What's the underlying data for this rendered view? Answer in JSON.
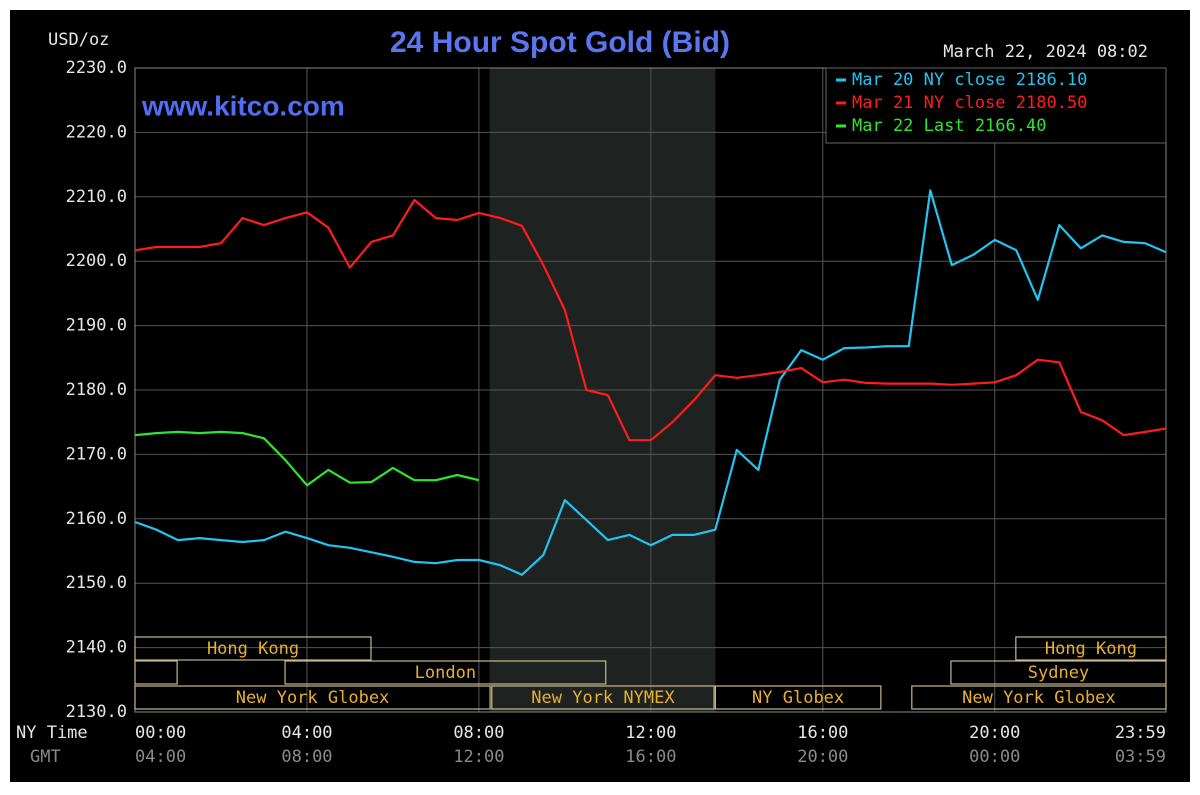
{
  "chart_data": {
    "type": "line",
    "title": "24 Hour Spot Gold (Bid)",
    "subtitle": "March 22, 2024 08:02",
    "y_label": "USD/oz",
    "watermark": "www.kitco.com",
    "x_label": "NY Time",
    "x2_label": "GMT",
    "x": [
      0,
      0.5,
      1,
      1.5,
      2,
      2.5,
      3,
      3.5,
      4,
      4.5,
      5,
      5.5,
      6,
      6.5,
      7,
      7.5,
      8,
      8.5,
      9,
      9.5,
      10,
      10.5,
      11,
      11.5,
      12,
      12.5,
      13,
      13.5,
      14,
      14.5,
      15,
      15.5,
      16,
      16.5,
      17,
      17.5,
      18,
      18.5,
      19,
      19.5,
      20,
      20.5,
      21,
      21.5,
      22,
      22.5,
      23,
      23.5,
      23.983
    ],
    "xlim": [
      0,
      23.983
    ],
    "xticks": [
      {
        "value": 0,
        "label": "00:00"
      },
      {
        "value": 4,
        "label": "04:00"
      },
      {
        "value": 8,
        "label": "08:00"
      },
      {
        "value": 12,
        "label": "12:00"
      },
      {
        "value": 16,
        "label": "16:00"
      },
      {
        "value": 20,
        "label": "20:00"
      },
      {
        "value": 23.983,
        "label": "23:59"
      }
    ],
    "x2ticks": [
      {
        "value": 0,
        "label": "04:00"
      },
      {
        "value": 4,
        "label": "08:00"
      },
      {
        "value": 8,
        "label": "12:00"
      },
      {
        "value": 12,
        "label": "16:00"
      },
      {
        "value": 16,
        "label": "20:00"
      },
      {
        "value": 20,
        "label": "00:00"
      },
      {
        "value": 23.983,
        "label": "03:59"
      }
    ],
    "ylim": [
      2130,
      2230
    ],
    "yticks": [
      {
        "value": 2130,
        "label": "2130.0"
      },
      {
        "value": 2140,
        "label": "2140.0"
      },
      {
        "value": 2150,
        "label": "2150.0"
      },
      {
        "value": 2160,
        "label": "2160.0"
      },
      {
        "value": 2170,
        "label": "2170.0"
      },
      {
        "value": 2180,
        "label": "2180.0"
      },
      {
        "value": 2190,
        "label": "2190.0"
      },
      {
        "value": 2200,
        "label": "2200.0"
      },
      {
        "value": 2210,
        "label": "2210.0"
      },
      {
        "value": 2220,
        "label": "2220.0"
      },
      {
        "value": 2230,
        "label": "2230.0"
      }
    ],
    "grid": true,
    "legend": "top-right",
    "shaded_range": [
      8.25,
      13.5
    ],
    "sessions": [
      {
        "label": "Hong Kong",
        "start": 0,
        "end": 5.49
      },
      {
        "label": "Hong Kong",
        "start": 20.49,
        "end": 23.983
      },
      {
        "label": null,
        "start": 0,
        "end": 0.98
      },
      {
        "label": "London",
        "start": 3.49,
        "end": 10.95
      },
      {
        "label": "Sydney",
        "start": 18.98,
        "end": 23.983
      },
      {
        "label": "New York Globex",
        "start": 0,
        "end": 8.26
      },
      {
        "label": "New York NYMEX",
        "start": 8.3,
        "end": 13.47
      },
      {
        "label": "NY Globex",
        "start": 13.5,
        "end": 17.35
      },
      {
        "label": "New York Globex",
        "start": 18.07,
        "end": 23.983
      }
    ],
    "series": [
      {
        "name": "Mar 20 NY close 2186.10",
        "color": "#22c4f2",
        "values": [
          2159.5,
          2158.3,
          2156.7,
          2157,
          2156.7,
          2156.4,
          2156.7,
          2158,
          2157,
          2155.9,
          2155.5,
          2154.8,
          2154.1,
          2153.3,
          2153.1,
          2153.6,
          2153.6,
          2152.8,
          2151.3,
          2154.4,
          2162.9,
          2159.8,
          2156.7,
          2157.5,
          2155.9,
          2157.5,
          2157.5,
          2158.3,
          2170.7,
          2167.6,
          2181.6,
          2186.2,
          2184.7,
          2186.5,
          2186.6,
          2186.8,
          2186.8,
          2211,
          2199.4,
          2201,
          2203.3,
          2201.7,
          2194,
          2205.6,
          2202,
          2204,
          2203,
          2202.8,
          2201.4
        ]
      },
      {
        "name": "Mar 21 NY close 2180.50",
        "color": "#ff1c1c",
        "values": [
          2201.7,
          2202.2,
          2202.2,
          2202.2,
          2202.8,
          2206.7,
          2205.6,
          2206.7,
          2207.6,
          2205.2,
          2199,
          2203,
          2204,
          2209.5,
          2206.7,
          2206.4,
          2207.5,
          2206.7,
          2205.5,
          2199.4,
          2192.4,
          2180,
          2179.2,
          2172.2,
          2172.2,
          2175,
          2178.4,
          2182.3,
          2181.9,
          2182.3,
          2182.8,
          2183.4,
          2181.2,
          2181.6,
          2181.1,
          2181,
          2181,
          2181,
          2180.8,
          2181,
          2181.2,
          2182.3,
          2184.7,
          2184.3,
          2176.6,
          2175.3,
          2173,
          2173.5,
          2174
        ]
      },
      {
        "name": "Mar 22 Last 2166.40",
        "color": "#2ee62e",
        "values": [
          2173,
          2173.3,
          2173.5,
          2173.3,
          2173.5,
          2173.3,
          2172.5,
          2169.1,
          2165.2,
          2167.6,
          2165.6,
          2165.7,
          2167.9,
          2166,
          2166,
          2166.8,
          2166,
          null,
          null,
          null,
          null,
          null,
          null,
          null,
          null,
          null,
          null,
          null,
          null,
          null,
          null,
          null,
          null,
          null,
          null,
          null,
          null,
          null,
          null,
          null,
          null,
          null,
          null,
          null,
          null,
          null,
          null,
          null,
          null
        ]
      }
    ]
  }
}
